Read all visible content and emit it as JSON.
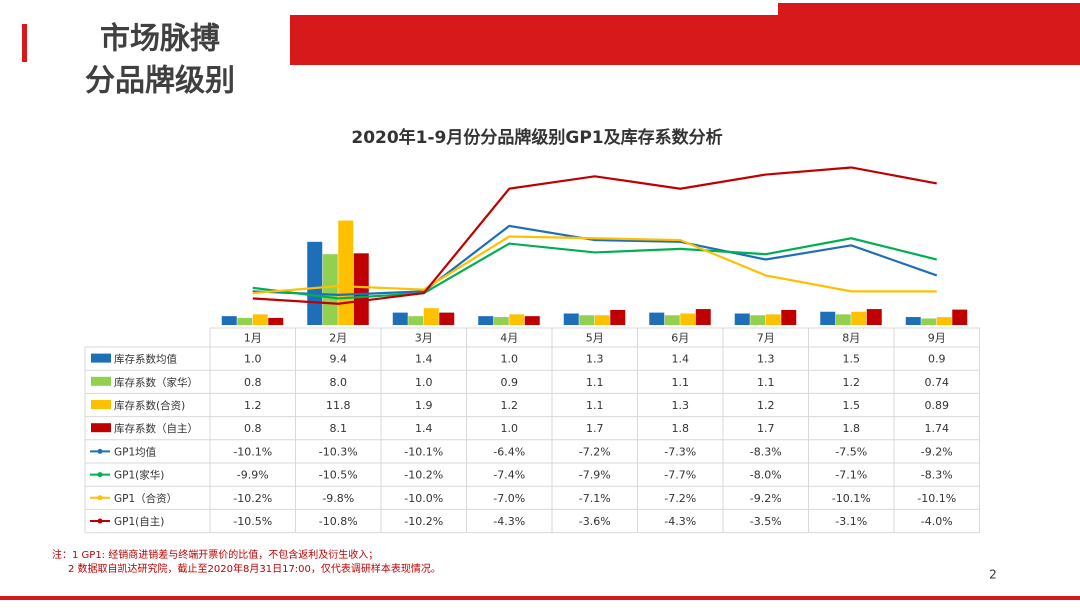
{
  "header": {
    "title": [
      "市场脉搏",
      "分品牌级别"
    ]
  },
  "chart_data": {
    "type": "bar",
    "title": "2020年1-9月份分品牌级别GP1及库存系数分析",
    "categories": [
      "1月",
      "2月",
      "3月",
      "4月",
      "5月",
      "6月",
      "7月",
      "8月",
      "9月"
    ],
    "ylim": [
      0,
      20
    ],
    "y2lim": [
      -12,
      -2
    ],
    "series": [
      {
        "name": "库存系数均值",
        "type": "bar",
        "color": "#1f6fb8",
        "values": [
          1.0,
          9.4,
          1.4,
          1.0,
          1.3,
          1.4,
          1.3,
          1.5,
          0.9
        ],
        "value_labels": [
          "1.0",
          "9.4",
          "1.4",
          "1.0",
          "1.3",
          "1.4",
          "1.3",
          "1.5",
          "0.9"
        ]
      },
      {
        "name": "库存系数（家华）",
        "type": "bar",
        "color": "#92d050",
        "values": [
          0.8,
          8.0,
          1.0,
          0.9,
          1.1,
          1.1,
          1.1,
          1.2,
          0.74
        ],
        "value_labels": [
          "0.8",
          "8.0",
          "1.0",
          "0.9",
          "1.1",
          "1.1",
          "1.1",
          "1.2",
          "0.74"
        ]
      },
      {
        "name": "库存系数(合资)",
        "type": "bar",
        "color": "#ffc000",
        "values": [
          1.2,
          11.8,
          1.9,
          1.2,
          1.1,
          1.3,
          1.2,
          1.5,
          0.89
        ],
        "value_labels": [
          "1.2",
          "11.8",
          "1.9",
          "1.2",
          "1.1",
          "1.3",
          "1.2",
          "1.5",
          "0.89"
        ]
      },
      {
        "name": "库存系数（自主）",
        "type": "bar",
        "color": "#c00000",
        "values": [
          0.8,
          8.1,
          1.4,
          1.0,
          1.7,
          1.8,
          1.7,
          1.8,
          1.74
        ],
        "value_labels": [
          "0.8",
          "8.1",
          "1.4",
          "1.0",
          "1.7",
          "1.8",
          "1.7",
          "1.8",
          "1.74"
        ]
      },
      {
        "name": "GP1均值",
        "type": "line",
        "axis": "y2",
        "color": "#1f6fb8",
        "values": [
          -10.1,
          -10.3,
          -10.1,
          -6.4,
          -7.2,
          -7.3,
          -8.3,
          -7.5,
          -9.2
        ],
        "value_labels": [
          "-10.1%",
          "-10.3%",
          "-10.1%",
          "-6.4%",
          "-7.2%",
          "-7.3%",
          "-8.3%",
          "-7.5%",
          "-9.2%"
        ]
      },
      {
        "name": "GP1(家华)",
        "type": "line",
        "axis": "y2",
        "color": "#00b050",
        "values": [
          -9.9,
          -10.5,
          -10.2,
          -7.4,
          -7.9,
          -7.7,
          -8.0,
          -7.1,
          -8.3
        ],
        "value_labels": [
          "-9.9%",
          "-10.5%",
          "-10.2%",
          "-7.4%",
          "-7.9%",
          "-7.7%",
          "-8.0%",
          "-7.1%",
          "-8.3%"
        ]
      },
      {
        "name": "GP1（合资）",
        "type": "line",
        "axis": "y2",
        "color": "#ffc000",
        "values": [
          -10.2,
          -9.8,
          -10.0,
          -7.0,
          -7.1,
          -7.2,
          -9.2,
          -10.1,
          -10.1
        ],
        "value_labels": [
          "-10.2%",
          "-9.8%",
          "-10.0%",
          "-7.0%",
          "-7.1%",
          "-7.2%",
          "-9.2%",
          "-10.1%",
          "-10.1%"
        ]
      },
      {
        "name": "GP1(自主)",
        "type": "line",
        "axis": "y2",
        "color": "#c00000",
        "values": [
          -10.5,
          -10.8,
          -10.2,
          -4.3,
          -3.6,
          -4.3,
          -3.5,
          -3.1,
          -4.0
        ],
        "value_labels": [
          "-10.5%",
          "-10.8%",
          "-10.2%",
          "-4.3%",
          "-3.6%",
          "-4.3%",
          "-3.5%",
          "-3.1%",
          "-4.0%"
        ]
      }
    ]
  },
  "notes": [
    "注：1 GP1: 经销商进销差与终端开票价的比值，不包含返利及衍生收入；",
    "2 数据取自凯达研究院，截止至2020年8月31日17:00，仅代表调研样本表现情况。"
  ],
  "page_number": "2"
}
